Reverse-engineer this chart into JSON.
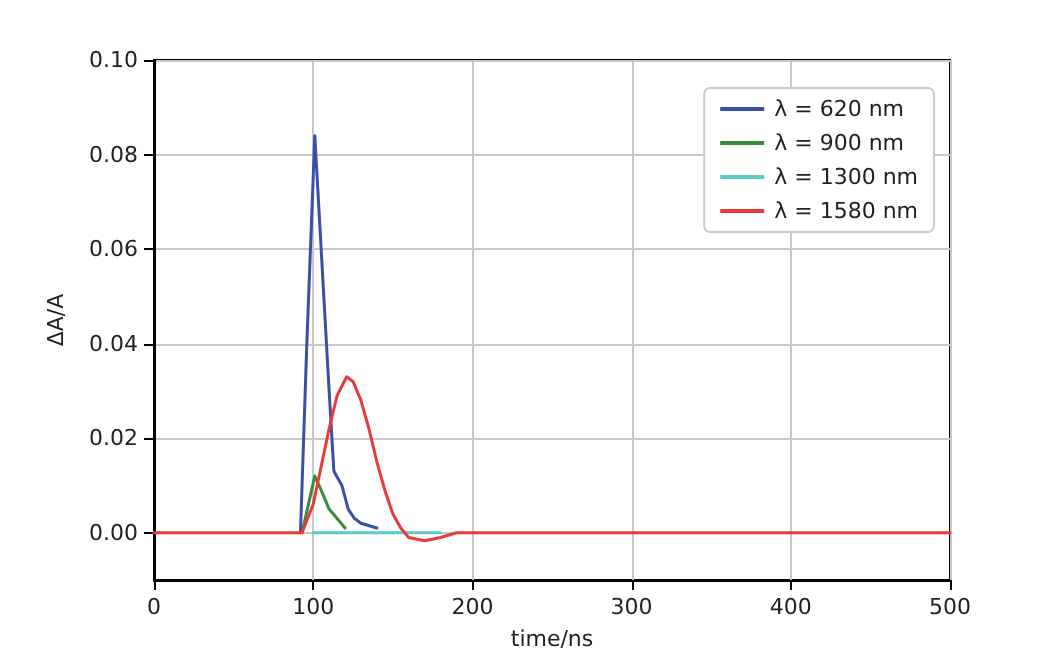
{
  "chart_data": {
    "type": "line",
    "xlabel": "time/ns",
    "ylabel": "ΔA/A",
    "xlim": [
      0,
      500
    ],
    "xticks": [
      0,
      100,
      200,
      300,
      400,
      500
    ],
    "ylim": [
      -0.01,
      0.1
    ],
    "yticks": [
      {
        "value": 0,
        "label": "0.00"
      },
      {
        "value": 0.02,
        "label": "0.02"
      },
      {
        "value": 0.04,
        "label": "0.04"
      },
      {
        "value": 0.06,
        "label": "0.06"
      },
      {
        "value": 0.08,
        "label": "0.08"
      },
      {
        "value": 0.1,
        "label": "0.10"
      }
    ],
    "grid": true,
    "legend": "top right",
    "marker": "none",
    "line_style": "solid",
    "series": [
      {
        "name": "λ = 620 nm",
        "color": "#3a4fa8",
        "x": [
          92,
          96,
          101,
          105,
          110,
          113,
          118,
          122,
          126,
          130,
          140
        ],
        "values": [
          0,
          0.04,
          0.084,
          0.06,
          0.03,
          0.013,
          0.01,
          0.005,
          0.003,
          0.002,
          0.001
        ]
      },
      {
        "name": "λ = 900 nm",
        "color": "#3a8a3a",
        "x": [
          93,
          97,
          101,
          105,
          110,
          115,
          120
        ],
        "values": [
          0,
          0.006,
          0.012,
          0.009,
          0.005,
          0.003,
          0.001
        ]
      },
      {
        "name": "λ = 1300 nm",
        "color": "#5fc8c8",
        "x": [
          100,
          150,
          180
        ],
        "values": [
          0,
          0,
          0
        ]
      },
      {
        "name": "λ = 1580 nm",
        "color": "#e83a3a",
        "x": [
          0,
          50,
          93,
          100,
          105,
          110,
          115,
          121,
          125,
          130,
          135,
          140,
          145,
          150,
          155,
          160,
          170,
          180,
          190,
          200,
          300,
          400,
          500
        ],
        "values": [
          0,
          0,
          0,
          0.006,
          0.014,
          0.022,
          0.029,
          0.033,
          0.032,
          0.028,
          0.022,
          0.015,
          0.009,
          0.004,
          0.001,
          -0.001,
          -0.0017,
          -0.001,
          0,
          0,
          0,
          0,
          0
        ]
      }
    ]
  }
}
